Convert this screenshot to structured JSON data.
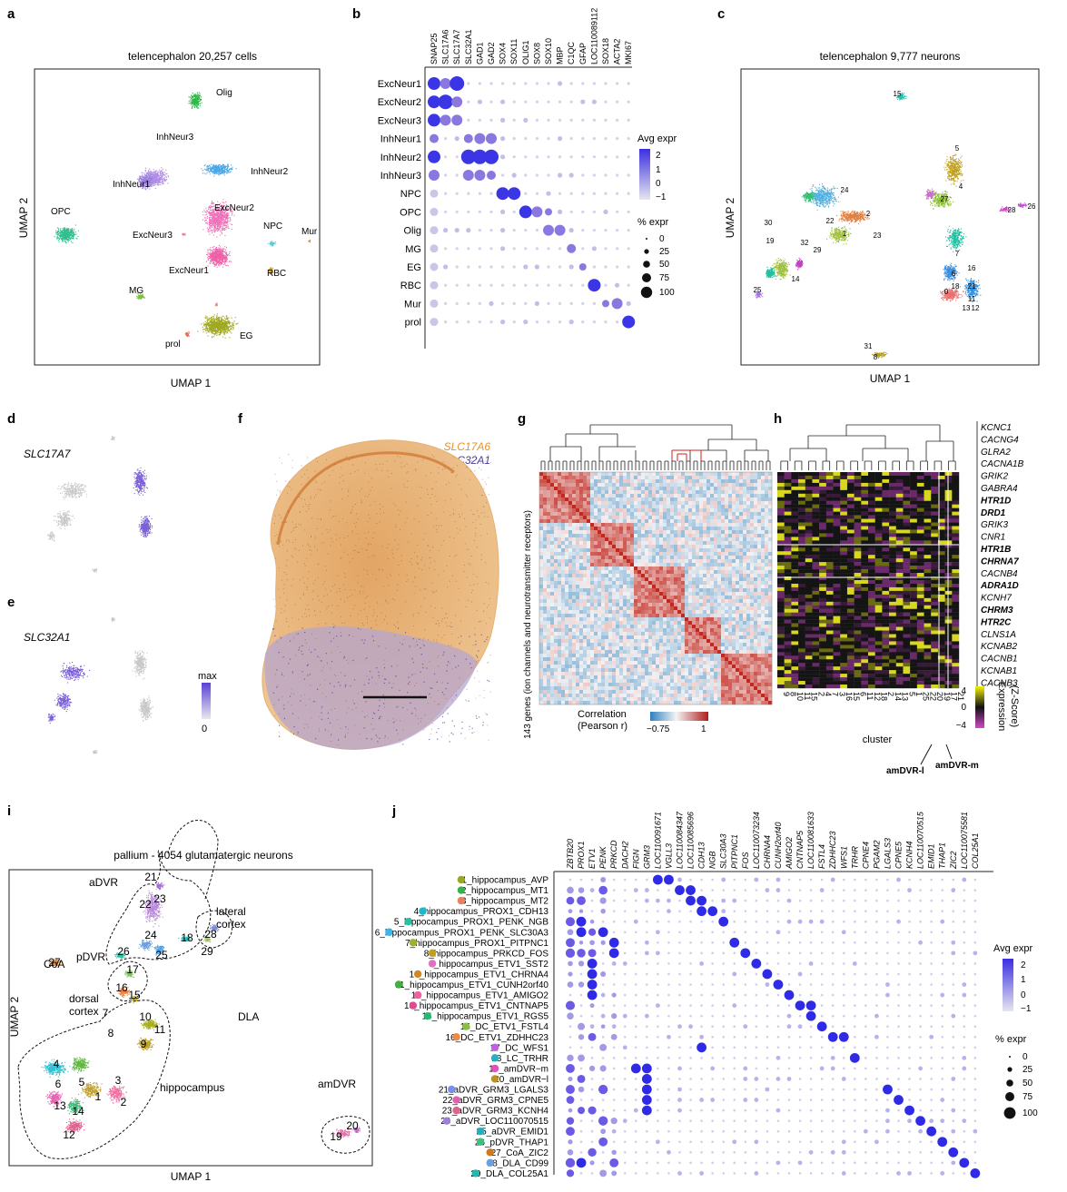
{
  "panels": {
    "a": {
      "label": "a",
      "title": "telencephalon 20,257 cells",
      "xlabel": "UMAP 1",
      "ylabel": "UMAP 2",
      "clusters": [
        {
          "name": "Olig",
          "color": "#2fb84a"
        },
        {
          "name": "InhNeur3",
          "color": "#b08ee6"
        },
        {
          "name": "InhNeur2",
          "color": "#4aa8e8"
        },
        {
          "name": "InhNeur1",
          "color": "#9b7ee0"
        },
        {
          "name": "OPC",
          "color": "#2fbf8f"
        },
        {
          "name": "ExcNeur2",
          "color": "#f06fb8"
        },
        {
          "name": "NPC",
          "color": "#5ec8d8"
        },
        {
          "name": "Mur",
          "color": "#e08a3a"
        },
        {
          "name": "ExcNeur3",
          "color": "#f07fb0"
        },
        {
          "name": "ExcNeur1",
          "color": "#ee5fa8"
        },
        {
          "name": "RBC",
          "color": "#c8a040"
        },
        {
          "name": "MG",
          "color": "#7fbf3f"
        },
        {
          "name": "EG",
          "color": "#a0a820"
        },
        {
          "name": "prol",
          "color": "#e0705a"
        }
      ]
    },
    "b": {
      "label": "b",
      "genes": [
        "SNAP25",
        "SLC17A6",
        "SLC17A7",
        "SLC32A1",
        "GAD1",
        "GAD2",
        "SOX4",
        "SOX11",
        "OLIG1",
        "SOX8",
        "SOX10",
        "MBP",
        "C1QC",
        "GFAP",
        "LOC110089112",
        "SOX18",
        "ACTA2",
        "MKI67"
      ],
      "rows": [
        "ExcNeur1",
        "ExcNeur2",
        "ExcNeur3",
        "InhNeur1",
        "InhNeur2",
        "InhNeur3",
        "NPC",
        "OPC",
        "Olig",
        "MG",
        "EG",
        "RBC",
        "Mur",
        "prol"
      ],
      "legend_expr_title": "Avg expr",
      "legend_expr_ticks": [
        "2",
        "1",
        "0",
        "−1"
      ],
      "legend_pct_title": "% expr",
      "legend_pct_ticks": [
        "0",
        "25",
        "50",
        "75",
        "100"
      ]
    },
    "c": {
      "label": "c",
      "title": "telencephalon 9,777 neurons",
      "xlabel": "UMAP 1",
      "ylabel": "UMAP 2",
      "cluster_labels": [
        "15",
        "24",
        "5",
        "4",
        "27",
        "2",
        "28",
        "26",
        "30",
        "22",
        "1",
        "23",
        "19",
        "32",
        "29",
        "14",
        "7",
        "6",
        "16",
        "21",
        "25",
        "13",
        "11",
        "18",
        "0",
        "12",
        "31",
        "8"
      ]
    },
    "d": {
      "label": "d",
      "gene": "SLC17A7"
    },
    "e": {
      "label": "e",
      "gene": "SLC32A1",
      "legend_max": "max",
      "legend_min": "0"
    },
    "f": {
      "label": "f",
      "gene1": "SLC17A6",
      "gene2": "SLC32A1",
      "gene1_color": "#e6922a",
      "gene2_color": "#4b3d9c"
    },
    "g": {
      "label": "g",
      "ylabel": "143 genes (ion channels and neurotransmitter receptors)",
      "legend_title1": "Correlation",
      "legend_title2": "(Pearson r)",
      "legend_min": "−0.75",
      "legend_max": "1"
    },
    "h": {
      "label": "h",
      "genes": [
        "KCNC1",
        "CACNG4",
        "GLRA2",
        "CACNA1B",
        "GRIK2",
        "GABRA4",
        "HTR1D",
        "DRD1",
        "GRIK3",
        "CNR1",
        "HTR1B",
        "CHRNA7",
        "CACNB4",
        "ADRA1D",
        "KCNH7",
        "CHRM3",
        "HTR2C",
        "CLNS1A",
        "KCNAB2",
        "CACNB1",
        "KCNAB1",
        "CACNB3"
      ],
      "bold_genes": [
        "HTR1D",
        "DRD1",
        "HTR1B",
        "CHRNA7",
        "ADRA1D",
        "CHRM3",
        "HTR2C"
      ],
      "clusters": [
        "9",
        "8",
        "10",
        "11",
        "15",
        "2",
        "4",
        "7",
        "3",
        "16",
        "15",
        "6",
        "11",
        "12",
        "18",
        "2",
        "14",
        "13",
        "5",
        "1",
        "25",
        "22",
        "20",
        "19",
        "17",
        "21"
      ],
      "xlabel": "cluster",
      "legend_title": "Expression",
      "legend_sub": "(Z-Score)",
      "legend_ticks": [
        "4",
        "0",
        "−4"
      ],
      "annot1": "amDVR-l",
      "annot2": "amDVR-m"
    },
    "i": {
      "label": "i",
      "title": "pallium - 4054 glutamatergic neurons",
      "xlabel": "UMAP 1",
      "ylabel": "UMAP 2",
      "regions": [
        "aDVR",
        "lateral",
        "cortex",
        "CoA",
        "pDVR",
        "dorsal",
        "cortex",
        "DLA",
        "amDVR",
        "hippocampus"
      ],
      "numbers": [
        "21",
        "22",
        "23",
        "24",
        "25",
        "26",
        "18",
        "27",
        "17",
        "16",
        "15",
        "28",
        "29",
        "10",
        "11",
        "7",
        "8",
        "9",
        "4",
        "6",
        "5",
        "3",
        "2",
        "1",
        "13",
        "14",
        "12",
        "20",
        "19"
      ]
    },
    "j": {
      "label": "j",
      "genes": [
        "ZBTB20",
        "PROX1",
        "ETV1",
        "PENK",
        "PRKCD",
        "DACH2",
        "FIGN",
        "GRM3",
        "LOC110091671",
        "VGLL3",
        "LOC110084347",
        "LOC110085696",
        "CDH13",
        "NGB",
        "SLC30A3",
        "PITPNC1",
        "FOS",
        "LOC110073234",
        "CHRNA4",
        "CUNH2orf40",
        "AMIGO2",
        "CNTNAP5",
        "LOC110081633",
        "FSTL4",
        "ZDHHC23",
        "WFS1",
        "TRHR",
        "CPNE4",
        "PGAM2",
        "LGALS3",
        "CPNE5",
        "KCNH4",
        "LOC110070515",
        "EMID1",
        "THAP1",
        "ZIC2",
        "LOC110075581",
        "COL25A1"
      ],
      "rows": [
        "1_hippocampus_AVP",
        "2_hippocampus_MT1",
        "3_hippocampus_MT2",
        "4_hippocampus_PROX1_CDH13",
        "5_hippocampus_PROX1_PENK_NGB",
        "6_hippocampus_PROX1_PENK_SLC30A3",
        "7_hippocampus_PROX1_PITPNC1",
        "8_hippocampus_PRKCD_FOS",
        "9_hippocampus_ETV1_SST2",
        "10_hippocampus_ETV1_CHRNA4",
        "11_hippocampus_ETV1_CUNH2orf40",
        "12_hippocampus_ETV1_AMIGO2",
        "13_hippocampus_ETV1_CNTNAP5",
        "14_hippocampus_ETV1_RGS5",
        "15_DC_ETV1_FSTL4",
        "16_DC_ETV1_ZDHHC23",
        "17_DC_WFS1",
        "18_LC_TRHR",
        "19_amDVR−m",
        "20_amDVR−l",
        "21_aDVR_GRM3_LGALS3",
        "22_aDVR_GRM3_CPNE5",
        "23_aDVR_GRM3_KCNH4",
        "24_aDVR_LOC110070515",
        "25_aDVR_EMID1",
        "26_pDVR_THAP1",
        "27_CoA_ZIC2",
        "28_DLA_CD99",
        "29_DLA_COL25A1"
      ],
      "row_colors": [
        "#9aa820",
        "#38b24a",
        "#e88060",
        "#1fb8c8",
        "#28c0a0",
        "#38b8e8",
        "#a0b030",
        "#c0a020",
        "#e070c0",
        "#d08a20",
        "#40b040",
        "#f060a0",
        "#e04a90",
        "#28b870",
        "#88c040",
        "#f08a40",
        "#c060e0",
        "#28b0c0",
        "#e050c0",
        "#c09020",
        "#7a90e8",
        "#e060b0",
        "#e06090",
        "#a080d8",
        "#20b0c0",
        "#40c080",
        "#d07820",
        "#6aa0e0",
        "#20b8b0"
      ],
      "legend_expr_title": "Avg expr",
      "legend_expr_ticks": [
        "2",
        "1",
        "0",
        "−1"
      ],
      "legend_pct_title": "% expr",
      "legend_pct_ticks": [
        "0",
        "25",
        "50",
        "75",
        "100"
      ]
    }
  }
}
